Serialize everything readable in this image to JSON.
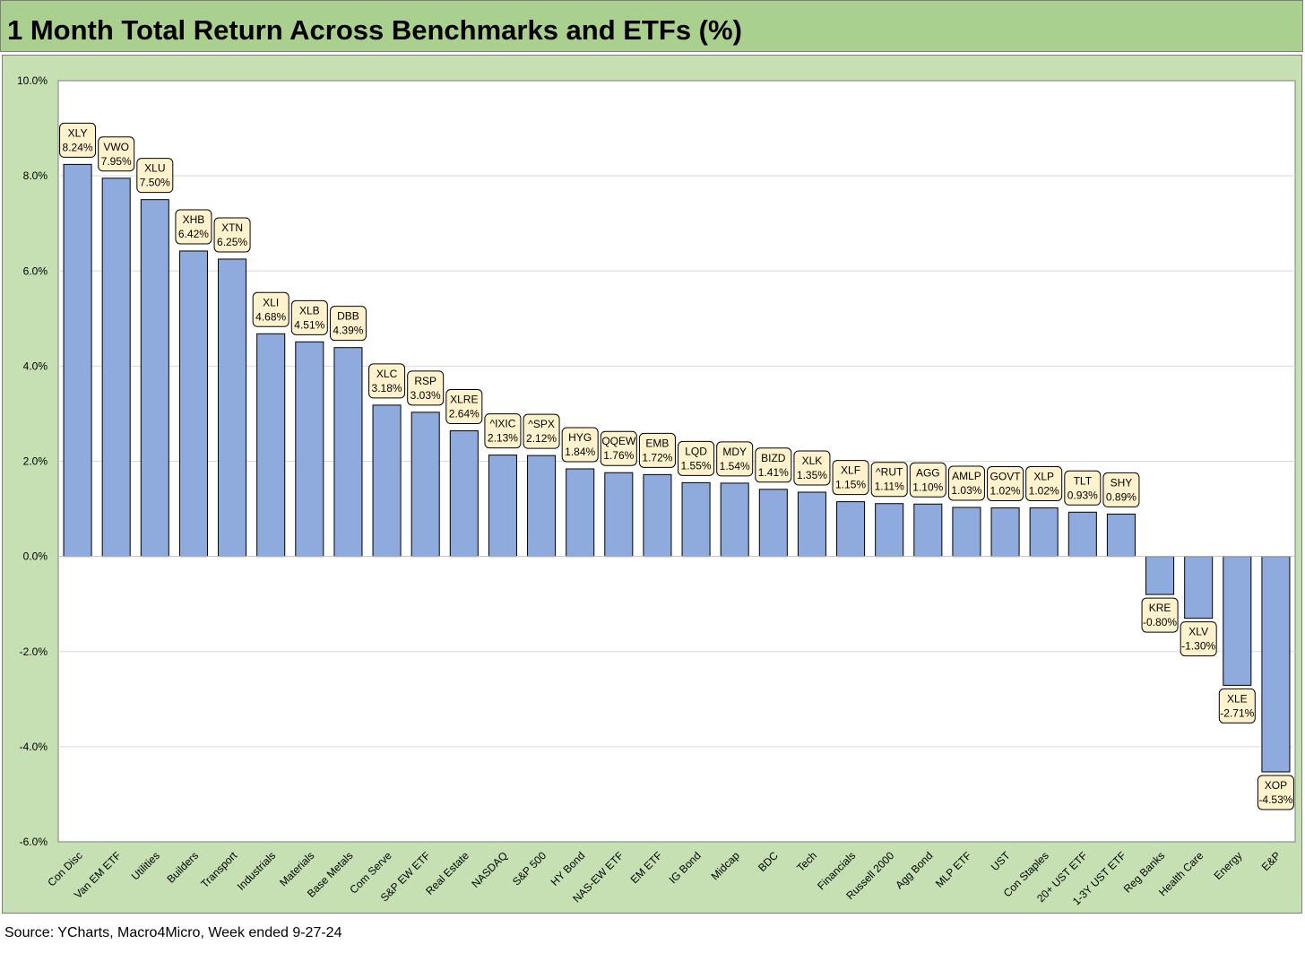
{
  "title": "1 Month Total Return Across Benchmarks and ETFs (%)",
  "source": "Source: YCharts, Macro4Micro, Week ended 9-27-24",
  "colors": {
    "title_bg": "#a9d08e",
    "chart_bg": "#c6e0b4",
    "plot_bg": "#ffffff",
    "bar_fill": "#8faadc",
    "bar_stroke": "#000000",
    "label_bg": "#fff2cc",
    "gridline": "#d9d9d9"
  },
  "chart_data": {
    "type": "bar",
    "ylim": [
      -6,
      10
    ],
    "ytick_step": 2,
    "ytick_format": "percent_1dp",
    "grid": true,
    "categories": [
      "Con Disc",
      "Van EM ETF",
      "Utilities",
      "Builders",
      "Transport",
      "Industrials",
      "Materials",
      "Base Metals",
      "Com Serve",
      "S&P EW ETF",
      "Real Estate",
      "NASDAQ",
      "S&P 500",
      "HY Bond",
      "NAS-EW ETF",
      "EM ETF",
      "IG Bond",
      "Midcap",
      "BDC",
      "Tech",
      "Financials",
      "Russell 2000",
      "Agg Bond",
      "MLP ETF",
      "UST",
      "Con Staples",
      "20+ UST ETF",
      "1-3Y UST ETF",
      "Reg Banks",
      "Health Care",
      "Energy",
      "E&P"
    ],
    "tickers": [
      "XLY",
      "VWO",
      "XLU",
      "XHB",
      "XTN",
      "XLI",
      "XLB",
      "DBB",
      "XLC",
      "RSP",
      "XLRE",
      "^IXIC",
      "^SPX",
      "HYG",
      "QQEW",
      "EMB",
      "LQD",
      "MDY",
      "BIZD",
      "XLK",
      "XLF",
      "^RUT",
      "AGG",
      "AMLP",
      "GOVT",
      "XLP",
      "TLT",
      "SHY",
      "KRE",
      "XLV",
      "XLE",
      "XOP"
    ],
    "values": [
      8.24,
      7.95,
      7.5,
      6.42,
      6.25,
      4.68,
      4.51,
      4.39,
      3.18,
      3.03,
      2.64,
      2.13,
      2.12,
      1.84,
      1.76,
      1.72,
      1.55,
      1.54,
      1.41,
      1.35,
      1.15,
      1.11,
      1.1,
      1.03,
      1.02,
      1.02,
      0.93,
      0.89,
      -0.8,
      -1.3,
      -2.71,
      -4.53
    ],
    "value_labels": [
      "8.24%",
      "7.95%",
      "7.50%",
      "6.42%",
      "6.25%",
      "4.68%",
      "4.51%",
      "4.39%",
      "3.18%",
      "3.03%",
      "2.64%",
      "2.13%",
      "2.12%",
      "1.84%",
      "1.76%",
      "1.72%",
      "1.55%",
      "1.54%",
      "1.41%",
      "1.35%",
      "1.15%",
      "1.11%",
      "1.10%",
      "1.03%",
      "1.02%",
      "1.02%",
      "0.93%",
      "0.89%",
      "-0.80%",
      "-1.30%",
      "-2.71%",
      "-4.53%"
    ]
  }
}
